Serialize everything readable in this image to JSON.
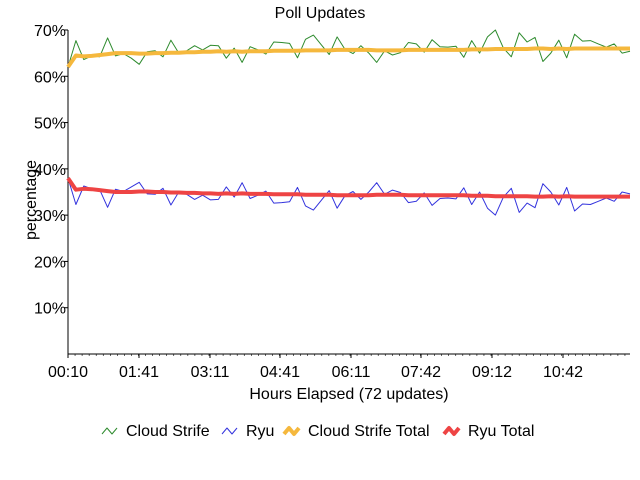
{
  "chart_data": {
    "type": "line",
    "title": "Poll Updates",
    "xlabel": "Hours Elapsed (72 updates)",
    "ylabel": "percentage",
    "x_ticks": [
      "00:10",
      "01:41",
      "03:11",
      "04:41",
      "06:11",
      "07:42",
      "09:12",
      "10:42"
    ],
    "y_ticks": [
      "10%",
      "20%",
      "30%",
      "40%",
      "50%",
      "60%",
      "70%"
    ],
    "ylim": [
      0,
      70
    ],
    "grid": false,
    "legend_position": "bottom",
    "series": [
      {
        "name": "Cloud Strife",
        "color": "#2e8b2e",
        "values": [
          62.0,
          67.7,
          63.6,
          64.4,
          64.2,
          68.3,
          64.4,
          64.9,
          63.9,
          62.6,
          65.3,
          65.5,
          64.2,
          67.8,
          65.0,
          65.5,
          66.6,
          65.7,
          66.7,
          66.6,
          63.9,
          66.1,
          63.0,
          66.4,
          65.7,
          64.8,
          67.4,
          67.3,
          67.1,
          64.0,
          68.0,
          68.9,
          66.8,
          64.7,
          68.5,
          65.8,
          64.9,
          66.6,
          65.0,
          63.0,
          65.5,
          64.6,
          65.1,
          67.3,
          67.0,
          65.2,
          67.9,
          66.4,
          66.3,
          66.5,
          64.1,
          67.7,
          65.0,
          68.5,
          70.0,
          66.1,
          64.2,
          69.4,
          67.4,
          68.4,
          63.2,
          65.0,
          67.8,
          64.0,
          69.1,
          67.6,
          67.7,
          67.0,
          66.3,
          67.0,
          65.0,
          65.4
        ]
      },
      {
        "name": "Ryu",
        "color": "#3333dd",
        "values": [
          38.0,
          32.3,
          36.3,
          35.7,
          35.5,
          31.7,
          35.6,
          35.1,
          36.1,
          37.1,
          34.6,
          34.5,
          35.8,
          32.2,
          35.0,
          34.5,
          33.4,
          34.3,
          33.3,
          33.4,
          36.1,
          33.9,
          37.0,
          33.6,
          34.3,
          35.2,
          32.6,
          32.7,
          32.9,
          36.0,
          32.0,
          31.1,
          33.2,
          35.3,
          31.5,
          34.2,
          35.1,
          33.4,
          35.0,
          37.0,
          34.5,
          35.4,
          34.9,
          32.7,
          33.0,
          34.8,
          32.1,
          33.6,
          33.7,
          33.5,
          35.9,
          32.3,
          35.0,
          31.5,
          30.0,
          33.9,
          35.8,
          30.6,
          32.6,
          31.6,
          36.8,
          35.0,
          32.2,
          36.0,
          30.9,
          32.4,
          32.3,
          33.0,
          33.7,
          33.0,
          35.0,
          34.6
        ]
      },
      {
        "name": "Cloud Strife Total",
        "color": "#f5b83d",
        "values": [
          62.0,
          64.5,
          64.3,
          64.4,
          64.6,
          64.8,
          65.0,
          65.0,
          65.0,
          64.9,
          64.9,
          65.0,
          65.0,
          65.1,
          65.1,
          65.2,
          65.2,
          65.3,
          65.3,
          65.4,
          65.3,
          65.4,
          65.3,
          65.4,
          65.4,
          65.4,
          65.5,
          65.5,
          65.5,
          65.5,
          65.6,
          65.6,
          65.6,
          65.6,
          65.7,
          65.7,
          65.7,
          65.7,
          65.7,
          65.6,
          65.6,
          65.6,
          65.6,
          65.7,
          65.7,
          65.7,
          65.7,
          65.7,
          65.7,
          65.7,
          65.7,
          65.8,
          65.8,
          65.8,
          65.9,
          65.9,
          65.9,
          65.9,
          65.9,
          66.0,
          66.0,
          65.9,
          66.0,
          65.9,
          66.0,
          66.0,
          66.0,
          66.0,
          66.0,
          66.0,
          66.0,
          66.0
        ]
      },
      {
        "name": "Ryu Total",
        "color": "#ee4444",
        "values": [
          38.0,
          35.5,
          35.7,
          35.6,
          35.4,
          35.2,
          35.0,
          35.0,
          35.0,
          35.1,
          35.1,
          35.0,
          35.0,
          34.9,
          34.9,
          34.8,
          34.8,
          34.7,
          34.7,
          34.6,
          34.7,
          34.6,
          34.7,
          34.6,
          34.6,
          34.6,
          34.5,
          34.5,
          34.5,
          34.5,
          34.4,
          34.4,
          34.4,
          34.4,
          34.3,
          34.3,
          34.3,
          34.3,
          34.3,
          34.4,
          34.4,
          34.4,
          34.4,
          34.3,
          34.3,
          34.3,
          34.3,
          34.3,
          34.3,
          34.3,
          34.3,
          34.2,
          34.2,
          34.2,
          34.1,
          34.1,
          34.1,
          34.1,
          34.1,
          34.0,
          34.0,
          34.1,
          34.0,
          34.1,
          34.0,
          34.0,
          34.0,
          34.0,
          34.0,
          34.0,
          34.0,
          34.0
        ]
      }
    ]
  }
}
